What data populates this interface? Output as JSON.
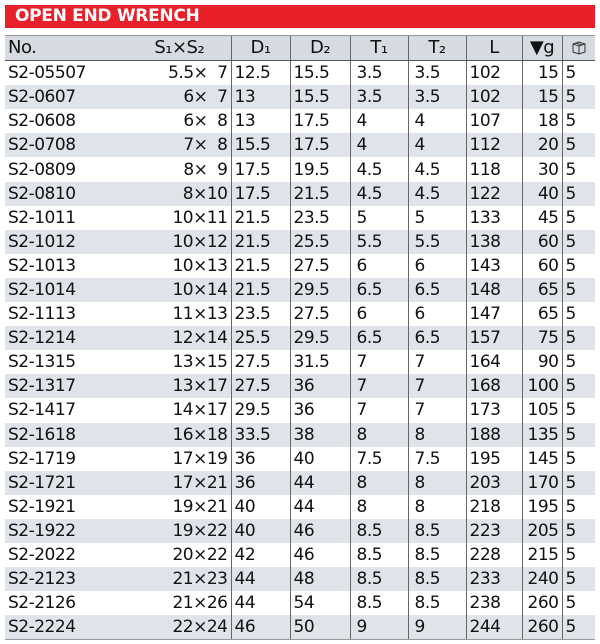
{
  "title": "OPEN END WRENCH",
  "headers": {
    "no": "No.",
    "size": "S₁×S₂",
    "d1": "D₁",
    "d2": "D₂",
    "t1": "T₁",
    "t2": "T₂",
    "l": "L",
    "weight": "▼g",
    "qty_icon": "box-icon"
  },
  "rows": [
    [
      "S2-05507",
      "5.5×  7",
      "12.5",
      "15.5",
      "3.5",
      "3.5",
      "102",
      "15",
      "5"
    ],
    [
      "S2-0607",
      "6×  7",
      "13",
      "15.5",
      "3.5",
      "3.5",
      "102",
      "15",
      "5"
    ],
    [
      "S2-0608",
      "6×  8",
      "13",
      "17.5",
      "4",
      "4",
      "107",
      "18",
      "5"
    ],
    [
      "S2-0708",
      "7×  8",
      "15.5",
      "17.5",
      "4",
      "4",
      "112",
      "20",
      "5"
    ],
    [
      "S2-0809",
      "8×  9",
      "17.5",
      "19.5",
      "4.5",
      "4.5",
      "118",
      "30",
      "5"
    ],
    [
      "S2-0810",
      "8×10",
      "17.5",
      "21.5",
      "4.5",
      "4.5",
      "122",
      "40",
      "5"
    ],
    [
      "S2-1011",
      "10×11",
      "21.5",
      "23.5",
      "5",
      "5",
      "133",
      "45",
      "5"
    ],
    [
      "S2-1012",
      "10×12",
      "21.5",
      "25.5",
      "5.5",
      "5.5",
      "138",
      "60",
      "5"
    ],
    [
      "S2-1013",
      "10×13",
      "21.5",
      "27.5",
      "6",
      "6",
      "143",
      "60",
      "5"
    ],
    [
      "S2-1014",
      "10×14",
      "21.5",
      "29.5",
      "6.5",
      "6.5",
      "148",
      "65",
      "5"
    ],
    [
      "S2-1113",
      "11×13",
      "23.5",
      "27.5",
      "6",
      "6",
      "147",
      "65",
      "5"
    ],
    [
      "S2-1214",
      "12×14",
      "25.5",
      "29.5",
      "6.5",
      "6.5",
      "157",
      "75",
      "5"
    ],
    [
      "S2-1315",
      "13×15",
      "27.5",
      "31.5",
      "7",
      "7",
      "164",
      "90",
      "5"
    ],
    [
      "S2-1317",
      "13×17",
      "27.5",
      "36",
      "7",
      "7",
      "168",
      "100",
      "5"
    ],
    [
      "S2-1417",
      "14×17",
      "29.5",
      "36",
      "7",
      "7",
      "173",
      "105",
      "5"
    ],
    [
      "S2-1618",
      "16×18",
      "33.5",
      "38",
      "8",
      "8",
      "188",
      "135",
      "5"
    ],
    [
      "S2-1719",
      "17×19",
      "36",
      "40",
      "7.5",
      "7.5",
      "195",
      "145",
      "5"
    ],
    [
      "S2-1721",
      "17×21",
      "36",
      "44",
      "8",
      "8",
      "203",
      "170",
      "5"
    ],
    [
      "S2-1921",
      "19×21",
      "40",
      "44",
      "8",
      "8",
      "218",
      "195",
      "5"
    ],
    [
      "S2-1922",
      "19×22",
      "40",
      "46",
      "8.5",
      "8.5",
      "223",
      "205",
      "5"
    ],
    [
      "S2-2022",
      "20×22",
      "42",
      "46",
      "8.5",
      "8.5",
      "228",
      "215",
      "5"
    ],
    [
      "S2-2123",
      "21×23",
      "44",
      "48",
      "8.5",
      "8.5",
      "233",
      "240",
      "5"
    ],
    [
      "S2-2126",
      "21×26",
      "44",
      "54",
      "8.5",
      "8.5",
      "238",
      "260",
      "5"
    ],
    [
      "S2-2224",
      "22×24",
      "46",
      "50",
      "9",
      "9",
      "244",
      "260",
      "5"
    ]
  ]
}
